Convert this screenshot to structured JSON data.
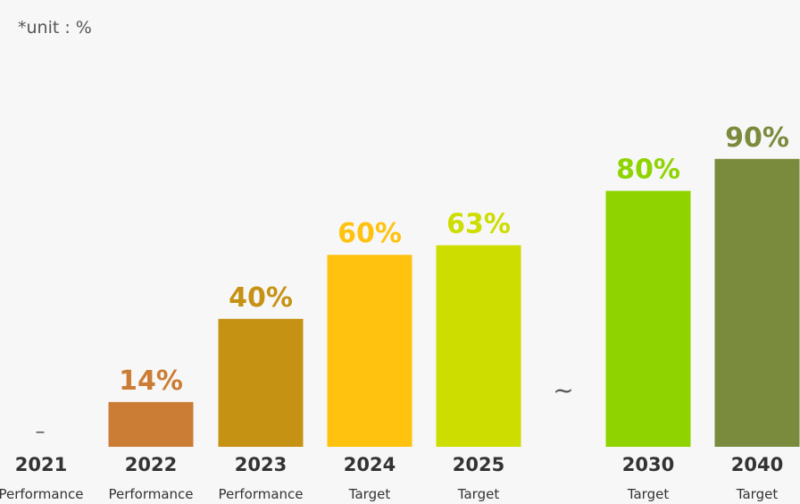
{
  "unit_note": "*unit : %",
  "break_symbol": "~",
  "chart_data": {
    "type": "bar",
    "title": "",
    "xlabel": "",
    "ylabel": "",
    "ylim": [
      0,
      100
    ],
    "grid": false,
    "categories": [
      "2021",
      "2022",
      "2023",
      "2024",
      "2025",
      "2030",
      "2040"
    ],
    "subcategories": [
      "Performance",
      "Performance",
      "Performance",
      "Target",
      "Target",
      "Target",
      "Target"
    ],
    "values": [
      null,
      14,
      40,
      60,
      63,
      80,
      90
    ],
    "data_labels": [
      "–",
      "14%",
      "40%",
      "60%",
      "63%",
      "80%",
      "90%"
    ],
    "colors": [
      "#555555",
      "#cc7d35",
      "#c69214",
      "#ffc20e",
      "#cddd00",
      "#8fd400",
      "#7b8b3e"
    ],
    "axis_break_between": [
      "2025",
      "2030"
    ]
  }
}
